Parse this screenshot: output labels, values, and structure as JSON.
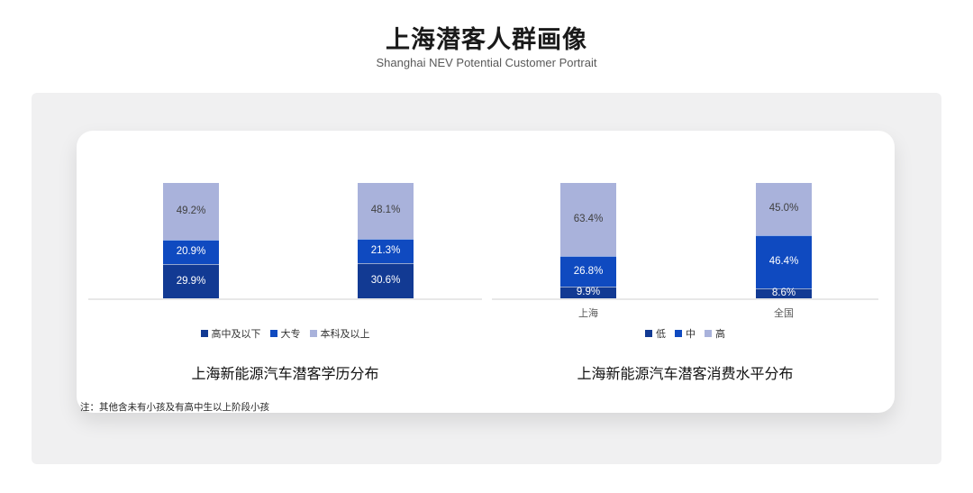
{
  "page": {
    "title": "上海潜客人群画像",
    "subtitle": "Shanghai NEV Potential Customer Portrait",
    "footnote": "注：其他含未有小孩及有高中生以上阶段小孩"
  },
  "colors": {
    "dark": "#123a93",
    "medium": "#0f4ac0",
    "light": "#a9b2db",
    "axis": "#e8e8e8",
    "panel_bg": "#f0f0f1",
    "card_bg": "#ffffff",
    "label_on_light": "#404040",
    "label_on_dark": "#ffffff"
  },
  "chart_data": [
    {
      "type": "bar",
      "stacked": true,
      "title": "上海新能源汽车潜客学历分布",
      "categories": [
        "",
        ""
      ],
      "show_x_labels": false,
      "unit": "%",
      "ylim": [
        0,
        100
      ],
      "grid": false,
      "legend_position": "bottom",
      "series": [
        {
          "name": "高中及以下",
          "color_key": "dark",
          "values": [
            29.9,
            30.6
          ]
        },
        {
          "name": "大专",
          "color_key": "medium",
          "values": [
            20.9,
            21.3
          ]
        },
        {
          "name": "本科及以上",
          "color_key": "light",
          "values": [
            49.2,
            48.1
          ]
        }
      ]
    },
    {
      "type": "bar",
      "stacked": true,
      "title": "上海新能源汽车潜客消费水平分布",
      "categories": [
        "上海",
        "全国"
      ],
      "show_x_labels": true,
      "unit": "%",
      "ylim": [
        0,
        100
      ],
      "grid": false,
      "legend_position": "bottom",
      "series": [
        {
          "name": "低",
          "color_key": "dark",
          "values": [
            9.9,
            8.6
          ]
        },
        {
          "name": "中",
          "color_key": "medium",
          "values": [
            26.8,
            46.4
          ]
        },
        {
          "name": "高",
          "color_key": "light",
          "values": [
            63.4,
            45.0
          ]
        }
      ]
    }
  ]
}
